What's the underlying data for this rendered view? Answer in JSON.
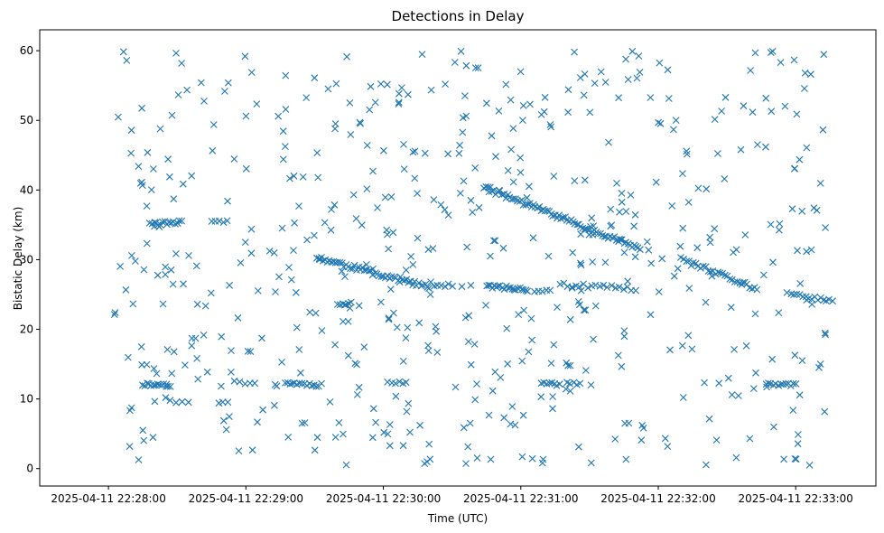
{
  "chart_data": {
    "type": "scatter",
    "title": "Detections in Delay",
    "xlabel": "Time (UTC)",
    "ylabel": "Bistatic Delay (km)",
    "xlim_seconds": [
      -30,
      335
    ],
    "ylim": [
      -2.5,
      63
    ],
    "x_origin": "2025-04-11 22:28:00",
    "grid": false,
    "marker": "x",
    "color": "#1f77b4",
    "x_ticks": [
      {
        "t": 0,
        "label": "2025-04-11 22:28:00"
      },
      {
        "t": 60,
        "label": "2025-04-11 22:29:00"
      },
      {
        "t": 120,
        "label": "2025-04-11 22:30:00"
      },
      {
        "t": 180,
        "label": "2025-04-11 22:31:00"
      },
      {
        "t": 240,
        "label": "2025-04-11 22:32:00"
      },
      {
        "t": 300,
        "label": "2025-04-11 22:33:00"
      }
    ],
    "y_ticks": [
      0,
      10,
      20,
      30,
      40,
      50,
      60
    ],
    "series": [
      {
        "name": "detections",
        "track_segments": [
          {
            "t0": 15,
            "t1": 27,
            "y0": 12.1,
            "y1": 12.0,
            "n": 14,
            "jitter": 0.25
          },
          {
            "t0": 18,
            "t1": 32,
            "y0": 35.0,
            "y1": 35.5,
            "n": 16,
            "jitter": 0.3
          },
          {
            "t0": 27,
            "t1": 35,
            "y0": 9.6,
            "y1": 9.6,
            "n": 4,
            "jitter": 0.2
          },
          {
            "t0": 45,
            "t1": 52,
            "y0": 35.5,
            "y1": 35.5,
            "n": 5,
            "jitter": 0.2
          },
          {
            "t0": 48,
            "t1": 52,
            "y0": 9.6,
            "y1": 9.6,
            "n": 3,
            "jitter": 0.2
          },
          {
            "t0": 55,
            "t1": 64,
            "y0": 12.4,
            "y1": 12.3,
            "n": 5,
            "jitter": 0.2
          },
          {
            "t0": 77,
            "t1": 93,
            "y0": 12.3,
            "y1": 12.0,
            "n": 16,
            "jitter": 0.25
          },
          {
            "t0": 91,
            "t1": 140,
            "y0": 30.3,
            "y1": 26.0,
            "n": 55,
            "jitter": 0.35
          },
          {
            "t0": 100,
            "t1": 106,
            "y0": 23.5,
            "y1": 23.7,
            "n": 6,
            "jitter": 0.2
          },
          {
            "t0": 122,
            "t1": 130,
            "y0": 12.4,
            "y1": 12.4,
            "n": 6,
            "jitter": 0.2
          },
          {
            "t0": 142,
            "t1": 150,
            "y0": 26.3,
            "y1": 26.3,
            "n": 6,
            "jitter": 0.2
          },
          {
            "t0": 165,
            "t1": 183,
            "y0": 26.2,
            "y1": 25.7,
            "n": 22,
            "jitter": 0.25
          },
          {
            "t0": 164,
            "t1": 232,
            "y0": 40.4,
            "y1": 31.6,
            "n": 80,
            "jitter": 0.35
          },
          {
            "t0": 189,
            "t1": 197,
            "y0": 12.2,
            "y1": 12.1,
            "n": 8,
            "jitter": 0.2
          },
          {
            "t0": 186,
            "t1": 193,
            "y0": 25.6,
            "y1": 25.4,
            "n": 5,
            "jitter": 0.2
          },
          {
            "t0": 200,
            "t1": 206,
            "y0": 12.2,
            "y1": 12.2,
            "n": 5,
            "jitter": 0.2
          },
          {
            "t0": 197,
            "t1": 230,
            "y0": 26.4,
            "y1": 25.8,
            "n": 20,
            "jitter": 0.3
          },
          {
            "t0": 250,
            "t1": 283,
            "y0": 30.0,
            "y1": 25.8,
            "n": 32,
            "jitter": 0.35
          },
          {
            "t0": 287,
            "t1": 300,
            "y0": 12.2,
            "y1": 12.0,
            "n": 13,
            "jitter": 0.2
          },
          {
            "t0": 298,
            "t1": 316,
            "y0": 25.0,
            "y1": 24.1,
            "n": 15,
            "jitter": 0.25
          }
        ],
        "clutter": {
          "count": 560,
          "t_range": [
            2,
            313
          ],
          "y_range": [
            0.5,
            60
          ],
          "seed": 11
        }
      }
    ]
  }
}
